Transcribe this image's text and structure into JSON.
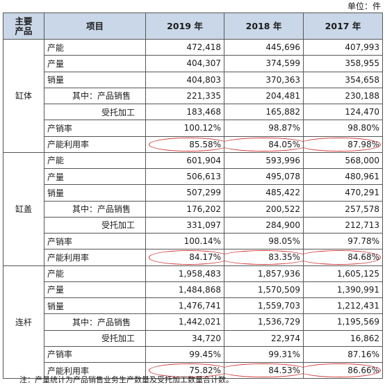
{
  "unit_label": "单位：件",
  "headers": {
    "product": "主要\n产品",
    "item": "项目",
    "y2019": "2019 年",
    "y2018": "2018 年",
    "y2017": "2017 年"
  },
  "groups": [
    {
      "product": "缸体",
      "rows": [
        {
          "item": "产能",
          "indent": 0,
          "v2019": "472,418",
          "v2018": "445,696",
          "v2017": "407,993"
        },
        {
          "item": "产量",
          "indent": 0,
          "v2019": "404,307",
          "v2018": "374,599",
          "v2017": "358,955"
        },
        {
          "item": "销量",
          "indent": 0,
          "v2019": "404,803",
          "v2018": "370,363",
          "v2017": "354,658"
        },
        {
          "item": "其中：产品销售",
          "indent": 1,
          "v2019": "221,335",
          "v2018": "204,481",
          "v2017": "230,188"
        },
        {
          "item": "受托加工",
          "indent": 2,
          "v2019": "183,468",
          "v2018": "165,882",
          "v2017": "124,470"
        },
        {
          "item": "产销率",
          "indent": 0,
          "v2019": "100.12%",
          "v2018": "98.87%",
          "v2017": "98.80%"
        },
        {
          "item": "产能利用率",
          "indent": 0,
          "v2019": "85.58%",
          "v2018": "84.05%",
          "v2017": "87.98%",
          "circled": true
        }
      ]
    },
    {
      "product": "缸盖",
      "rows": [
        {
          "item": "产能",
          "indent": 0,
          "v2019": "601,904",
          "v2018": "593,996",
          "v2017": "568,000"
        },
        {
          "item": "产量",
          "indent": 0,
          "v2019": "506,613",
          "v2018": "495,078",
          "v2017": "480,961"
        },
        {
          "item": "销量",
          "indent": 0,
          "v2019": "507,299",
          "v2018": "485,422",
          "v2017": "470,291"
        },
        {
          "item": "其中：产品销售",
          "indent": 1,
          "v2019": "176,202",
          "v2018": "200,522",
          "v2017": "257,578"
        },
        {
          "item": "受托加工",
          "indent": 2,
          "v2019": "331,097",
          "v2018": "284,900",
          "v2017": "212,713"
        },
        {
          "item": "产销率",
          "indent": 0,
          "v2019": "100.14%",
          "v2018": "98.05%",
          "v2017": "97.78%"
        },
        {
          "item": "产能利用率",
          "indent": 0,
          "v2019": "84.17%",
          "v2018": "83.35%",
          "v2017": "84.68%",
          "circled": true
        }
      ]
    },
    {
      "product": "连杆",
      "rows": [
        {
          "item": "产能",
          "indent": 0,
          "v2019": "1,958,483",
          "v2018": "1,857,936",
          "v2017": "1,605,125"
        },
        {
          "item": "产量",
          "indent": 0,
          "v2019": "1,484,868",
          "v2018": "1,570,509",
          "v2017": "1,390,991"
        },
        {
          "item": "销量",
          "indent": 0,
          "v2019": "1,476,741",
          "v2018": "1,559,703",
          "v2017": "1,212,431"
        },
        {
          "item": "其中：产品销售",
          "indent": 1,
          "v2019": "1,442,021",
          "v2018": "1,536,729",
          "v2017": "1,195,569"
        },
        {
          "item": "受托加工",
          "indent": 2,
          "v2019": "34,720",
          "v2018": "22,974",
          "v2017": "16,862"
        },
        {
          "item": "产销率",
          "indent": 0,
          "v2019": "99.45%",
          "v2018": "99.31%",
          "v2017": "87.16%"
        },
        {
          "item": "产能利用率",
          "indent": 0,
          "v2019": "75.82%",
          "v2018": "84.53%",
          "v2017": "86.66%",
          "circled": true
        }
      ]
    }
  ],
  "note": "注：产量统计为产品销售业务生产数量及受托加工数量合计数。",
  "colors": {
    "header_bg": "#c9d7e8",
    "ellipse": "#d03030",
    "border": "#555555"
  }
}
